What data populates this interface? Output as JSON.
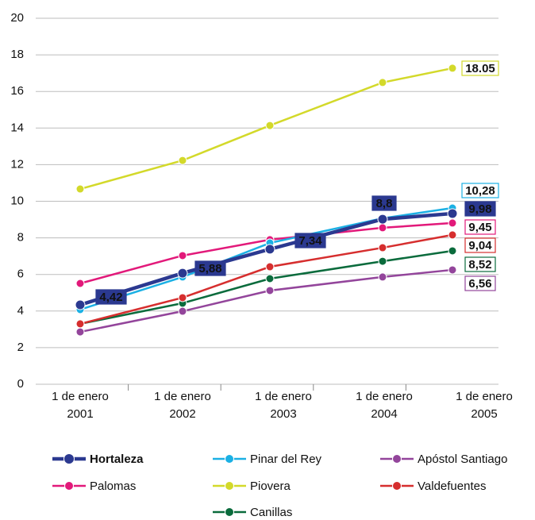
{
  "chart_data": {
    "type": "line",
    "categories": [
      [
        "1 de enero",
        "2001"
      ],
      [
        "1 de enero",
        "2002"
      ],
      [
        "1 de enero",
        "2003"
      ],
      [
        "1 de enero",
        "2004"
      ],
      [
        "1 de enero",
        "2005"
      ]
    ],
    "ylim": [
      0,
      20
    ],
    "yticks": [
      0,
      2,
      4,
      6,
      8,
      10,
      12,
      14,
      16,
      18,
      20
    ],
    "grid": true,
    "series": [
      {
        "name": "Hortaleza",
        "color": "#2b3990",
        "values": [
          4.34,
          6.07,
          7.38,
          9.02,
          9.33
        ]
      },
      {
        "name": "Pinar del Rey",
        "color": "#1bb0e4",
        "values": [
          4.08,
          5.86,
          7.72,
          9.07,
          9.63
        ]
      },
      {
        "name": "Apóstol Santiago",
        "color": "#93459b",
        "values": [
          2.86,
          3.99,
          5.12,
          5.86,
          6.25
        ]
      },
      {
        "name": "Palomas",
        "color": "#e2197a",
        "values": [
          5.51,
          7.03,
          7.9,
          8.55,
          8.81
        ]
      },
      {
        "name": "Piovera",
        "color": "#d3d92a",
        "values": [
          10.67,
          12.23,
          14.14,
          16.49,
          17.27
        ]
      },
      {
        "name": "Valdefuentes",
        "color": "#d62e2e",
        "values": [
          3.3,
          4.73,
          6.42,
          7.46,
          8.16
        ]
      },
      {
        "name": "Canillas",
        "color": "#0a6b3c",
        "values": [
          3.3,
          4.43,
          5.77,
          6.72,
          7.29
        ]
      }
    ],
    "annotations": [
      {
        "text": "4,42",
        "color": "#2b3990",
        "filled": true
      },
      {
        "text": "5,88",
        "color": "#2b3990",
        "filled": true
      },
      {
        "text": "7,34",
        "color": "#2b3990",
        "filled": true
      },
      {
        "text": "8,8",
        "color": "#2b3990",
        "filled": true
      },
      {
        "text": "9,98",
        "color": "#2b3990",
        "filled": true
      },
      {
        "text": "18.05",
        "color": "#d3d92a",
        "filled": false
      },
      {
        "text": "10,28",
        "color": "#1bb0e4",
        "filled": false
      },
      {
        "text": "9,45",
        "color": "#e2197a",
        "filled": false
      },
      {
        "text": "9,04",
        "color": "#d62e2e",
        "filled": false
      },
      {
        "text": "8,52",
        "color": "#0a6b3c",
        "filled": false
      },
      {
        "text": "6,56",
        "color": "#93459b",
        "filled": false
      }
    ]
  }
}
